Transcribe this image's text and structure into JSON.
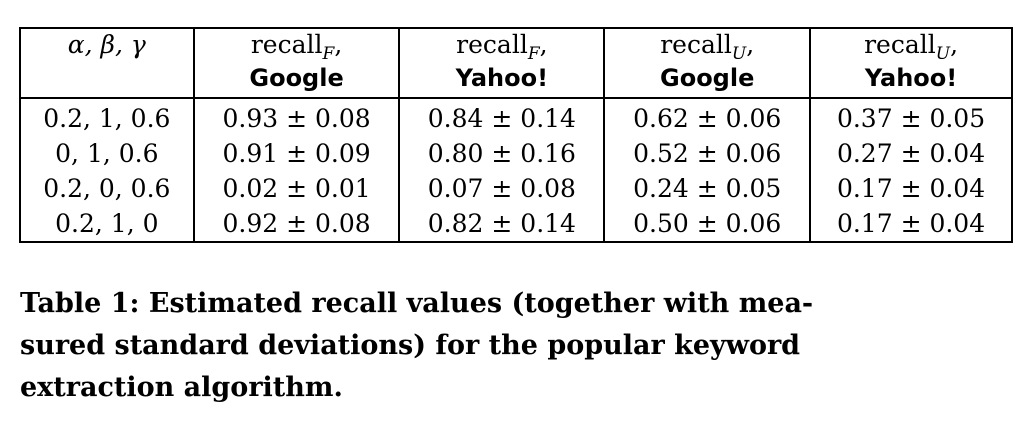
{
  "table": {
    "header": {
      "col0": "α, β, γ",
      "col1": {
        "base": "recall",
        "sub": "F",
        "suffix": ",",
        "engine": "Google"
      },
      "col2": {
        "base": "recall",
        "sub": "F",
        "suffix": ",",
        "engine": "Yahoo!"
      },
      "col3": {
        "base": "recall",
        "sub": "U",
        "suffix": ",",
        "engine": "Google"
      },
      "col4": {
        "base": "recall",
        "sub": "U",
        "suffix": ",",
        "engine": "Yahoo!"
      }
    },
    "rows": [
      [
        "0.2, 1, 0.6",
        "0.93 ± 0.08",
        "0.84 ± 0.14",
        "0.62 ± 0.06",
        "0.37 ± 0.05"
      ],
      [
        "0, 1, 0.6",
        "0.91 ± 0.09",
        "0.80 ± 0.16",
        "0.52 ± 0.06",
        "0.27 ± 0.04"
      ],
      [
        "0.2, 0, 0.6",
        "0.02 ± 0.01",
        "0.07 ± 0.08",
        "0.24 ± 0.05",
        "0.17 ± 0.04"
      ],
      [
        "0.2, 1, 0",
        "0.92 ± 0.08",
        "0.82 ± 0.14",
        "0.50 ± 0.06",
        "0.17 ± 0.04"
      ]
    ]
  },
  "caption": {
    "lines": [
      "Table 1: Estimated recall values (together with mea-",
      "sured standard deviations) for the popular keyword",
      "extraction algorithm."
    ]
  }
}
